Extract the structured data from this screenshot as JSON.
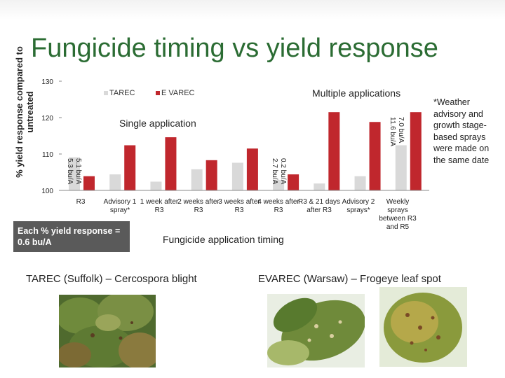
{
  "title": "Fungicide timing vs yield response",
  "colors": {
    "tarec": "#d9d9d9",
    "evarec": "#c0272d",
    "title": "#2b6c33",
    "box": "#5a5a5a"
  },
  "chart_data": {
    "type": "bar",
    "ylabel": "% yield response compared to untreated",
    "xlabel": "Fungicide application timing",
    "ylim": [
      100,
      130
    ],
    "yticks": [
      "100",
      "110",
      "120",
      "130"
    ],
    "grid": false,
    "legend_position": "top-left",
    "categories": [
      "R3",
      "Advisory 1 spray*",
      "1 week after R3",
      "2 weeks after R3",
      "3 weeks after R3",
      "4 weeks after R3",
      "R3 & 21 days after R3",
      "Advisory 2 sprays*",
      "Weekly sprays between R3 and R5"
    ],
    "series": [
      {
        "name": "TAREC",
        "values": [
          109.1,
          104.4,
          102.4,
          105.8,
          107.6,
          102.9,
          101.9,
          103.9,
          112.4
        ]
      },
      {
        "name": "E VAREC",
        "values": [
          103.9,
          112.4,
          114.6,
          108.3,
          111.5,
          104.4,
          121.5,
          118.8,
          121.5
        ]
      }
    ],
    "annotations": {
      "single": "Single application",
      "multiple": "Multiple applications",
      "bar_labels": [
        {
          "category": "R3",
          "lines": [
            "5.1 bu/A",
            "5.3 bu/A"
          ]
        },
        {
          "category": "4 weeks after R3",
          "lines": [
            "0.2 bu/A",
            "2.7 bu/A"
          ]
        },
        {
          "category": "Weekly sprays between R3 and R5",
          "lines": [
            "7.0 bu/A",
            "11.6 bu/A"
          ]
        }
      ]
    }
  },
  "side_note": "*Weather advisory and growth stage-based sprays were made on the same date",
  "conversion_note": "Each % yield response = 0.6 bu/A",
  "captions": {
    "left": "TAREC (Suffolk) – Cercospora blight",
    "right": "EVAREC (Warsaw) – Frogeye leaf spot"
  }
}
